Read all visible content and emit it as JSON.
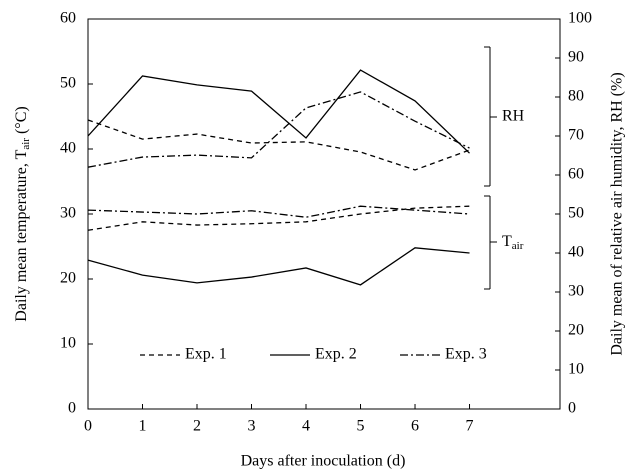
{
  "chart_data": {
    "type": "line",
    "xlabel": "Days after inoculation (d)",
    "ylabel_parts": [
      "Daily mean temperature, T",
      "air",
      " (°C)"
    ],
    "y2label": "Daily mean of relative air humidity, RH (%)",
    "x": [
      0,
      1,
      2,
      3,
      4,
      5,
      6,
      7
    ],
    "xlim": [
      0,
      8.66
    ],
    "xticks": [
      0,
      1,
      2,
      3,
      4,
      5,
      6,
      7
    ],
    "ylim": [
      0,
      60
    ],
    "yticks": [
      0,
      10,
      20,
      30,
      40,
      50,
      60
    ],
    "y2lim": [
      0,
      100
    ],
    "y2ticks": [
      0,
      10,
      20,
      30,
      40,
      50,
      60,
      70,
      80,
      90,
      100
    ],
    "series": [
      {
        "name": "Exp. 1",
        "color": "#000000",
        "dash": "5,4",
        "values": [
          27.5,
          28.8,
          28.3,
          28.5,
          28.8,
          30.0,
          30.9,
          31.2
        ]
      },
      {
        "name": "Exp. 2",
        "color": "#000000",
        "dash": "none",
        "values": [
          22.9,
          20.6,
          19.4,
          20.3,
          21.7,
          19.1,
          24.8,
          24.0
        ]
      },
      {
        "name": "Exp. 3",
        "color": "#000000",
        "dash": "8,3,2,3",
        "values": [
          30.6,
          30.3,
          30.0,
          30.5,
          29.5,
          31.2,
          30.6,
          30.0
        ]
      },
      {
        "color": "#000000",
        "dash": "5,4",
        "axis": "y2",
        "values": [
          74.1,
          69.2,
          70.5,
          68.2,
          68.5,
          65.9,
          61.3,
          66.4
        ]
      },
      {
        "color": "#000000",
        "dash": "none",
        "axis": "y2",
        "values": [
          70.0,
          85.4,
          83.1,
          81.5,
          69.5,
          86.9,
          79.0,
          65.6
        ]
      },
      {
        "color": "#000000",
        "dash": "8,3,2,3",
        "axis": "y2",
        "values": [
          62.0,
          64.6,
          65.1,
          64.4,
          77.2,
          81.3,
          73.8,
          66.9
        ]
      }
    ],
    "annotations": [
      {
        "label": "RH"
      },
      {
        "label": "T",
        "sub": "air"
      }
    ]
  }
}
